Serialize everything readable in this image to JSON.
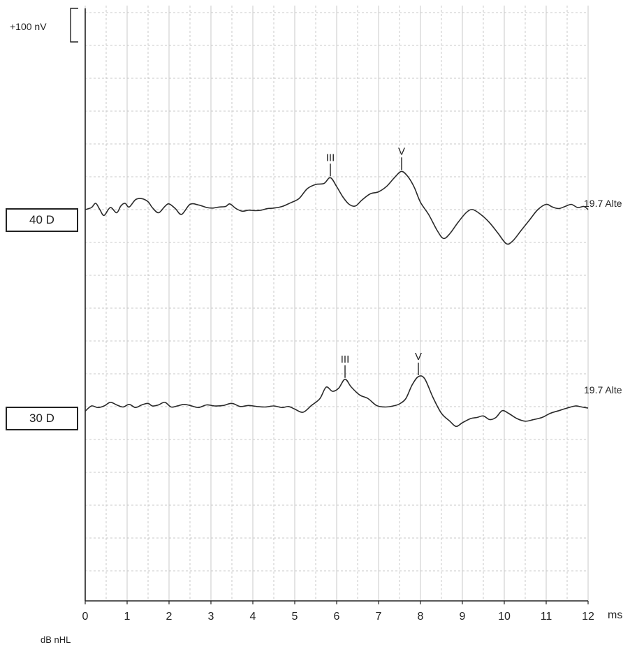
{
  "scale_bar_label": "+100 nV",
  "unit_label": "dB nHL",
  "chart_data": {
    "type": "line",
    "xlabel": "ms",
    "ylabel": "",
    "xlim": [
      0,
      12
    ],
    "xticks": [
      "0",
      "1",
      "2",
      "3",
      "4",
      "5",
      "6",
      "7",
      "8",
      "9",
      "10",
      "11",
      "12"
    ],
    "grid": true,
    "line_color": "#2a2a2a",
    "grid_color": "#c8c8c8",
    "series": [
      {
        "name": "40 D",
        "trailing_label": "19.7 Alte",
        "x": [
          0,
          0.15,
          0.25,
          0.35,
          0.45,
          0.6,
          0.75,
          0.85,
          0.95,
          1.05,
          1.2,
          1.35,
          1.5,
          1.6,
          1.75,
          1.9,
          2.0,
          2.15,
          2.3,
          2.5,
          2.7,
          2.9,
          3.05,
          3.2,
          3.35,
          3.45,
          3.6,
          3.75,
          3.9,
          4.05,
          4.2,
          4.35,
          4.5,
          4.7,
          4.9,
          5.1,
          5.3,
          5.5,
          5.7,
          5.85,
          6.0,
          6.15,
          6.3,
          6.45,
          6.6,
          6.8,
          7.0,
          7.2,
          7.4,
          7.55,
          7.7,
          7.85,
          8.0,
          8.2,
          8.4,
          8.55,
          8.7,
          8.9,
          9.1,
          9.25,
          9.45,
          9.65,
          9.85,
          10.05,
          10.2,
          10.4,
          10.6,
          10.8,
          11.0,
          11.15,
          11.3,
          11.45,
          11.6,
          11.75,
          11.9,
          12.0
        ],
        "y": [
          0,
          4,
          12,
          0,
          -11,
          4,
          -6,
          7,
          12,
          5,
          19,
          21,
          15,
          4,
          -6,
          6,
          11,
          2,
          -9,
          10,
          9,
          4,
          3,
          5,
          6,
          11,
          2,
          -3,
          -1,
          -2,
          -1,
          2,
          3,
          6,
          13,
          21,
          40,
          48,
          50,
          61,
          44,
          24,
          10,
          7,
          18,
          30,
          34,
          45,
          63,
          73,
          63,
          43,
          14,
          -10,
          -40,
          -55,
          -46,
          -24,
          -5,
          0,
          -10,
          -25,
          -45,
          -65,
          -60,
          -40,
          -20,
          0,
          10,
          5,
          2,
          6,
          10,
          4,
          6,
          0
        ]
      },
      {
        "name": "30 D",
        "trailing_label": "19.7 Alte",
        "x": [
          0,
          0.15,
          0.3,
          0.45,
          0.6,
          0.75,
          0.9,
          1.05,
          1.2,
          1.35,
          1.5,
          1.6,
          1.75,
          1.9,
          2.05,
          2.2,
          2.35,
          2.5,
          2.7,
          2.9,
          3.1,
          3.3,
          3.5,
          3.7,
          3.9,
          4.1,
          4.3,
          4.5,
          4.7,
          4.85,
          5.0,
          5.2,
          5.4,
          5.6,
          5.75,
          5.9,
          6.05,
          6.2,
          6.35,
          6.55,
          6.75,
          6.95,
          7.15,
          7.35,
          7.5,
          7.65,
          7.8,
          7.95,
          8.1,
          8.3,
          8.5,
          8.7,
          8.85,
          9.0,
          9.2,
          9.35,
          9.5,
          9.65,
          9.8,
          9.95,
          10.1,
          10.3,
          10.5,
          10.7,
          10.9,
          11.1,
          11.3,
          11.5,
          11.7,
          11.85,
          12.0
        ],
        "y": [
          -6,
          4,
          1,
          4,
          11,
          6,
          2,
          7,
          1,
          6,
          9,
          4,
          6,
          11,
          2,
          4,
          7,
          5,
          1,
          6,
          4,
          5,
          9,
          3,
          5,
          3,
          2,
          4,
          1,
          3,
          -2,
          -8,
          5,
          18,
          40,
          32,
          38,
          55,
          40,
          25,
          18,
          5,
          2,
          4,
          8,
          18,
          44,
          60,
          56,
          20,
          -10,
          -25,
          -35,
          -28,
          -20,
          -18,
          -15,
          -22,
          -18,
          -5,
          -10,
          -20,
          -25,
          -22,
          -18,
          -10,
          -5,
          0,
          4,
          2,
          0
        ]
      }
    ],
    "peak_annotations": [
      {
        "series": "40 D",
        "label": "III",
        "x": 5.85,
        "y": 61
      },
      {
        "series": "40 D",
        "label": "V",
        "x": 7.55,
        "y": 73
      },
      {
        "series": "30 D",
        "label": "III",
        "x": 6.2,
        "y": 55
      },
      {
        "series": "30 D",
        "label": "V",
        "x": 7.95,
        "y": 60
      }
    ]
  }
}
